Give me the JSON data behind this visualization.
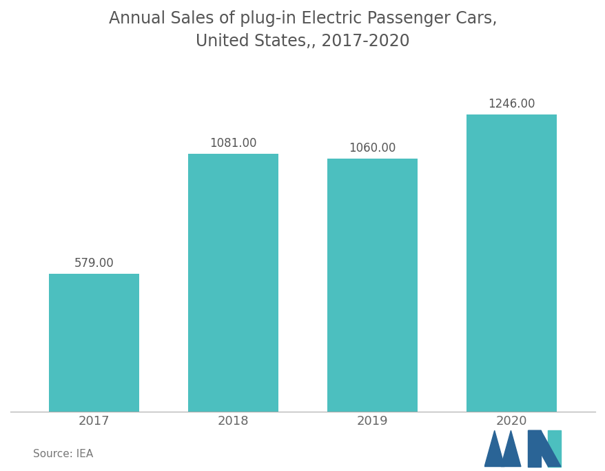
{
  "title_line1": "Annual Sales of plug-in Electric Passenger Cars,",
  "title_line2": "United States,, 2017-2020",
  "categories": [
    "2017",
    "2018",
    "2019",
    "2020"
  ],
  "values": [
    579.0,
    1081.0,
    1060.0,
    1246.0
  ],
  "bar_color": "#4CBFBF",
  "title_fontsize": 17,
  "label_fontsize": 12,
  "tick_fontsize": 13,
  "source_text": "Source: IEA",
  "source_fontsize": 11,
  "background_color": "#ffffff",
  "title_color": "#555555",
  "label_color": "#555555",
  "tick_color": "#666666",
  "ylim": [
    0,
    1450
  ],
  "bar_width": 0.65,
  "logo_color1": "#2A6496",
  "logo_color2": "#4CBFBF"
}
